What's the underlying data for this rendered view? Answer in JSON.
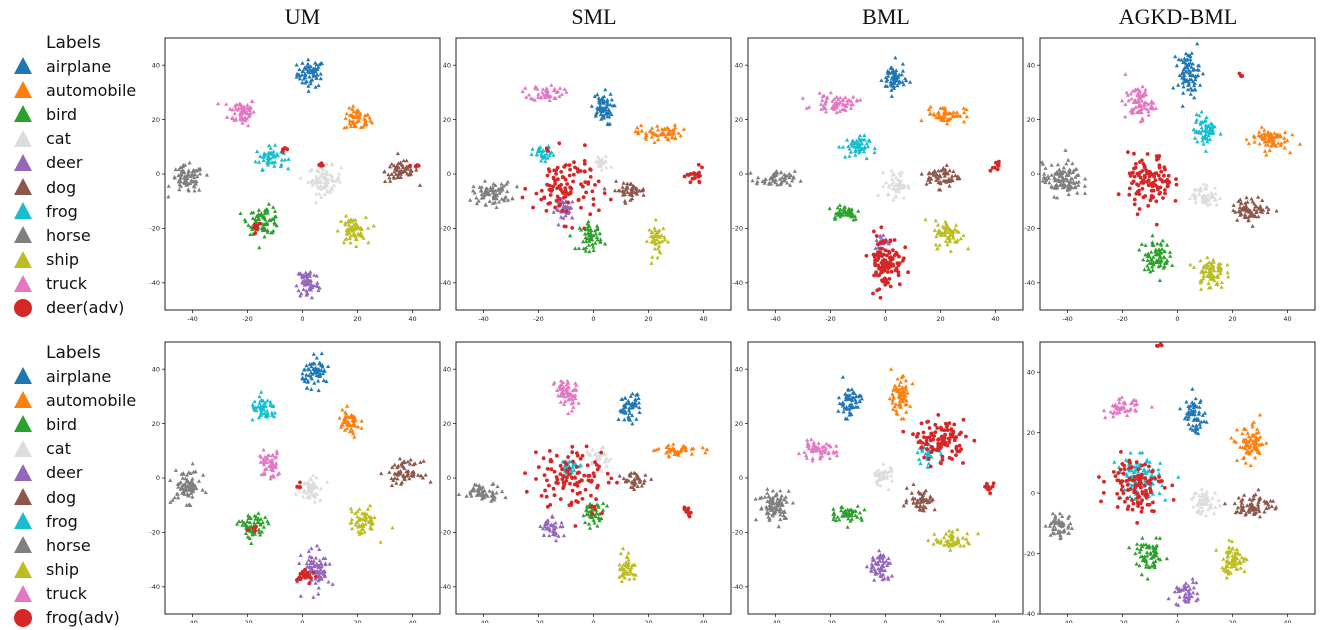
{
  "column_titles": [
    "UM",
    "SML",
    "BML",
    "AGKD-BML"
  ],
  "legends": [
    {
      "title": "Labels",
      "items": [
        {
          "label": "airplane",
          "color": "#1f77b4",
          "marker": "triangle"
        },
        {
          "label": "automobile",
          "color": "#ff7f0e",
          "marker": "triangle"
        },
        {
          "label": "bird",
          "color": "#2ca02c",
          "marker": "triangle"
        },
        {
          "label": "cat",
          "color": "#dddddd",
          "marker": "triangle"
        },
        {
          "label": "deer",
          "color": "#9467bd",
          "marker": "triangle"
        },
        {
          "label": "dog",
          "color": "#8c564b",
          "marker": "triangle"
        },
        {
          "label": "frog",
          "color": "#17becf",
          "marker": "triangle"
        },
        {
          "label": "horse",
          "color": "#7f7f7f",
          "marker": "triangle"
        },
        {
          "label": "ship",
          "color": "#bcbd22",
          "marker": "triangle"
        },
        {
          "label": "truck",
          "color": "#e377c2",
          "marker": "triangle"
        },
        {
          "label": "deer(adv)",
          "color": "#d62728",
          "marker": "circle"
        }
      ]
    },
    {
      "title": "Labels",
      "items": [
        {
          "label": "airplane",
          "color": "#1f77b4",
          "marker": "triangle"
        },
        {
          "label": "automobile",
          "color": "#ff7f0e",
          "marker": "triangle"
        },
        {
          "label": "bird",
          "color": "#2ca02c",
          "marker": "triangle"
        },
        {
          "label": "cat",
          "color": "#dddddd",
          "marker": "triangle"
        },
        {
          "label": "deer",
          "color": "#9467bd",
          "marker": "triangle"
        },
        {
          "label": "dog",
          "color": "#8c564b",
          "marker": "triangle"
        },
        {
          "label": "frog",
          "color": "#17becf",
          "marker": "triangle"
        },
        {
          "label": "horse",
          "color": "#7f7f7f",
          "marker": "triangle"
        },
        {
          "label": "ship",
          "color": "#bcbd22",
          "marker": "triangle"
        },
        {
          "label": "truck",
          "color": "#e377c2",
          "marker": "triangle"
        },
        {
          "label": "frog(adv)",
          "color": "#d62728",
          "marker": "circle"
        }
      ]
    }
  ],
  "chart_data": [
    {
      "type": "scatter",
      "title": "UM",
      "row": 0,
      "xlim": [
        -50,
        50
      ],
      "ylim": [
        -50,
        50
      ],
      "xticks": [
        -40,
        -20,
        0,
        20,
        40
      ],
      "yticks": [
        -40,
        -20,
        0,
        20,
        40
      ],
      "clusters": [
        {
          "class": "airplane",
          "cx": 3,
          "cy": 37,
          "rx": 5,
          "ry": 5
        },
        {
          "class": "automobile",
          "cx": 20,
          "cy": 20,
          "rx": 5,
          "ry": 4
        },
        {
          "class": "truck",
          "cx": -22,
          "cy": 23,
          "rx": 5,
          "ry": 5
        },
        {
          "class": "frog",
          "cx": -12,
          "cy": 6,
          "rx": 5,
          "ry": 4
        },
        {
          "class": "cat",
          "cx": 8,
          "cy": -2,
          "rx": 6,
          "ry": 5
        },
        {
          "class": "dog",
          "cx": 36,
          "cy": 1,
          "rx": 6,
          "ry": 4
        },
        {
          "class": "horse",
          "cx": -42,
          "cy": -2,
          "rx": 6,
          "ry": 5
        },
        {
          "class": "bird",
          "cx": -14,
          "cy": -17,
          "rx": 6,
          "ry": 5
        },
        {
          "class": "ship",
          "cx": 18,
          "cy": -21,
          "rx": 5,
          "ry": 5
        },
        {
          "class": "deer",
          "cx": 2,
          "cy": -40,
          "rx": 4,
          "ry": 6
        },
        {
          "class": "adv",
          "cx": -17,
          "cy": -19,
          "rx": 2,
          "ry": 2
        },
        {
          "class": "adv",
          "cx": -6,
          "cy": 9,
          "rx": 2,
          "ry": 1
        },
        {
          "class": "adv",
          "cx": 7,
          "cy": 3,
          "rx": 2,
          "ry": 1
        },
        {
          "class": "adv",
          "cx": 41,
          "cy": 3,
          "rx": 2,
          "ry": 1
        }
      ]
    },
    {
      "type": "scatter",
      "title": "SML",
      "row": 0,
      "xlim": [
        -50,
        50
      ],
      "ylim": [
        -50,
        50
      ],
      "xticks": [
        -40,
        -20,
        0,
        20,
        40
      ],
      "yticks": [
        -40,
        -20,
        0,
        20,
        40
      ],
      "clusters": [
        {
          "class": "truck",
          "cx": -17,
          "cy": 30,
          "rx": 6,
          "ry": 3
        },
        {
          "class": "airplane",
          "cx": 3,
          "cy": 24,
          "rx": 4,
          "ry": 6
        },
        {
          "class": "automobile",
          "cx": 24,
          "cy": 15,
          "rx": 8,
          "ry": 3
        },
        {
          "class": "frog",
          "cx": -18,
          "cy": 7,
          "rx": 4,
          "ry": 3
        },
        {
          "class": "cat",
          "cx": 3,
          "cy": 4,
          "rx": 3,
          "ry": 3
        },
        {
          "class": "horse",
          "cx": -37,
          "cy": -7,
          "rx": 7,
          "ry": 4
        },
        {
          "class": "dog",
          "cx": 13,
          "cy": -6,
          "rx": 6,
          "ry": 3
        },
        {
          "class": "deer",
          "cx": -10,
          "cy": -13,
          "rx": 4,
          "ry": 4
        },
        {
          "class": "bird",
          "cx": -1,
          "cy": -23,
          "rx": 4,
          "ry": 5
        },
        {
          "class": "ship",
          "cx": 23,
          "cy": -24,
          "rx": 3,
          "ry": 6
        },
        {
          "class": "adv",
          "cx": -10,
          "cy": -5,
          "rx": 12,
          "ry": 12
        },
        {
          "class": "adv",
          "cx": 37,
          "cy": -1,
          "rx": 3,
          "ry": 3
        }
      ]
    },
    {
      "type": "scatter",
      "title": "BML",
      "row": 0,
      "xlim": [
        -50,
        50
      ],
      "ylim": [
        -50,
        50
      ],
      "xticks": [
        -40,
        -20,
        0,
        20,
        40
      ],
      "yticks": [
        -40,
        -20,
        0,
        20,
        40
      ],
      "clusters": [
        {
          "class": "airplane",
          "cx": 3,
          "cy": 35,
          "rx": 4,
          "ry": 6
        },
        {
          "class": "truck",
          "cx": -18,
          "cy": 26,
          "rx": 8,
          "ry": 3
        },
        {
          "class": "automobile",
          "cx": 22,
          "cy": 22,
          "rx": 7,
          "ry": 3
        },
        {
          "class": "frog",
          "cx": -11,
          "cy": 10,
          "rx": 5,
          "ry": 4
        },
        {
          "class": "horse",
          "cx": -40,
          "cy": -2,
          "rx": 7,
          "ry": 3
        },
        {
          "class": "cat",
          "cx": 4,
          "cy": -4,
          "rx": 4,
          "ry": 5
        },
        {
          "class": "dog",
          "cx": 21,
          "cy": -1,
          "rx": 6,
          "ry": 4
        },
        {
          "class": "bird",
          "cx": -15,
          "cy": -14,
          "rx": 6,
          "ry": 3
        },
        {
          "class": "ship",
          "cx": 23,
          "cy": -22,
          "rx": 5,
          "ry": 5
        },
        {
          "class": "deer",
          "cx": -1,
          "cy": -25,
          "rx": 3,
          "ry": 3
        },
        {
          "class": "adv",
          "cx": 0,
          "cy": -32,
          "rx": 6,
          "ry": 10
        },
        {
          "class": "adv",
          "cx": 40,
          "cy": 3,
          "rx": 2,
          "ry": 2
        }
      ]
    },
    {
      "type": "scatter",
      "title": "AGKD-BML",
      "row": 0,
      "xlim": [
        -50,
        50
      ],
      "ylim": [
        -50,
        50
      ],
      "xticks": [
        -40,
        -20,
        0,
        20,
        40
      ],
      "yticks": [
        -40,
        -20,
        0,
        20,
        40
      ],
      "clusters": [
        {
          "class": "airplane",
          "cx": 4,
          "cy": 37,
          "rx": 4,
          "ry": 8
        },
        {
          "class": "truck",
          "cx": -14,
          "cy": 26,
          "rx": 5,
          "ry": 6
        },
        {
          "class": "frog",
          "cx": 10,
          "cy": 16,
          "rx": 4,
          "ry": 6
        },
        {
          "class": "automobile",
          "cx": 33,
          "cy": 13,
          "rx": 7,
          "ry": 4
        },
        {
          "class": "horse",
          "cx": -42,
          "cy": -2,
          "rx": 7,
          "ry": 6
        },
        {
          "class": "cat",
          "cx": 10,
          "cy": -8,
          "rx": 5,
          "ry": 4
        },
        {
          "class": "dog",
          "cx": 27,
          "cy": -13,
          "rx": 7,
          "ry": 4
        },
        {
          "class": "bird",
          "cx": -8,
          "cy": -30,
          "rx": 5,
          "ry": 6
        },
        {
          "class": "ship",
          "cx": 12,
          "cy": -36,
          "rx": 5,
          "ry": 6
        },
        {
          "class": "adv",
          "cx": -10,
          "cy": -3,
          "rx": 8,
          "ry": 10
        },
        {
          "class": "adv",
          "cx": 23,
          "cy": 36,
          "rx": 1,
          "ry": 1
        }
      ]
    },
    {
      "type": "scatter",
      "title": "UM",
      "row": 1,
      "xlim": [
        -50,
        50
      ],
      "ylim": [
        -50,
        50
      ],
      "xticks": [
        -40,
        -20,
        0,
        20,
        40
      ],
      "yticks": [
        -40,
        -20,
        0,
        20,
        40
      ],
      "clusters": [
        {
          "class": "airplane",
          "cx": 5,
          "cy": 39,
          "rx": 5,
          "ry": 5
        },
        {
          "class": "frog",
          "cx": -14,
          "cy": 25,
          "rx": 5,
          "ry": 4
        },
        {
          "class": "automobile",
          "cx": 17,
          "cy": 20,
          "rx": 4,
          "ry": 5
        },
        {
          "class": "truck",
          "cx": -12,
          "cy": 5,
          "rx": 4,
          "ry": 5
        },
        {
          "class": "cat",
          "cx": 3,
          "cy": -3,
          "rx": 4,
          "ry": 5
        },
        {
          "class": "dog",
          "cx": 37,
          "cy": 2,
          "rx": 6,
          "ry": 4
        },
        {
          "class": "horse",
          "cx": -42,
          "cy": -3,
          "rx": 5,
          "ry": 6
        },
        {
          "class": "bird",
          "cx": -18,
          "cy": -18,
          "rx": 5,
          "ry": 5
        },
        {
          "class": "ship",
          "cx": 22,
          "cy": -16,
          "rx": 5,
          "ry": 5
        },
        {
          "class": "deer",
          "cx": 5,
          "cy": -34,
          "rx": 5,
          "ry": 7
        },
        {
          "class": "adv",
          "cx": 1,
          "cy": -36,
          "rx": 3,
          "ry": 3
        },
        {
          "class": "adv",
          "cx": -1,
          "cy": -3,
          "rx": 1,
          "ry": 1
        },
        {
          "class": "adv",
          "cx": -18,
          "cy": -19,
          "rx": 2,
          "ry": 1
        }
      ]
    },
    {
      "type": "scatter",
      "title": "SML",
      "row": 1,
      "xlim": [
        -50,
        50
      ],
      "ylim": [
        -50,
        50
      ],
      "xticks": [
        -40,
        -20,
        0,
        20,
        40
      ],
      "yticks": [
        -40,
        -20,
        0,
        20,
        40
      ],
      "clusters": [
        {
          "class": "truck",
          "cx": -10,
          "cy": 31,
          "rx": 4,
          "ry": 6
        },
        {
          "class": "airplane",
          "cx": 13,
          "cy": 26,
          "rx": 4,
          "ry": 5
        },
        {
          "class": "automobile",
          "cx": 31,
          "cy": 10,
          "rx": 8,
          "ry": 2
        },
        {
          "class": "cat",
          "cx": 2,
          "cy": 7,
          "rx": 4,
          "ry": 4
        },
        {
          "class": "horse",
          "cx": -40,
          "cy": -5,
          "rx": 7,
          "ry": 3
        },
        {
          "class": "dog",
          "cx": 15,
          "cy": -1,
          "rx": 5,
          "ry": 3
        },
        {
          "class": "frog",
          "cx": -8,
          "cy": 4,
          "rx": 4,
          "ry": 3
        },
        {
          "class": "bird",
          "cx": 0,
          "cy": -13,
          "rx": 4,
          "ry": 4
        },
        {
          "class": "deer",
          "cx": -15,
          "cy": -18,
          "rx": 4,
          "ry": 4
        },
        {
          "class": "ship",
          "cx": 12,
          "cy": -33,
          "rx": 3,
          "ry": 6
        },
        {
          "class": "adv",
          "cx": -8,
          "cy": 0,
          "rx": 14,
          "ry": 12
        },
        {
          "class": "adv",
          "cx": 34,
          "cy": -12,
          "rx": 2,
          "ry": 2
        }
      ]
    },
    {
      "type": "scatter",
      "title": "BML",
      "row": 1,
      "xlim": [
        -50,
        50
      ],
      "ylim": [
        -50,
        50
      ],
      "xticks": [
        -40,
        -20,
        0,
        20,
        40
      ],
      "yticks": [
        -40,
        -20,
        0,
        20,
        40
      ],
      "clusters": [
        {
          "class": "airplane",
          "cx": -13,
          "cy": 28,
          "rx": 4,
          "ry": 6
        },
        {
          "class": "automobile",
          "cx": 5,
          "cy": 30,
          "rx": 4,
          "ry": 7
        },
        {
          "class": "truck",
          "cx": -25,
          "cy": 10,
          "rx": 7,
          "ry": 3
        },
        {
          "class": "cat",
          "cx": -1,
          "cy": 1,
          "rx": 4,
          "ry": 4
        },
        {
          "class": "frog",
          "cx": 16,
          "cy": 9,
          "rx": 4,
          "ry": 3
        },
        {
          "class": "horse",
          "cx": -40,
          "cy": -10,
          "rx": 6,
          "ry": 6
        },
        {
          "class": "dog",
          "cx": 13,
          "cy": -8,
          "rx": 5,
          "ry": 4
        },
        {
          "class": "bird",
          "cx": -14,
          "cy": -13,
          "rx": 6,
          "ry": 3
        },
        {
          "class": "ship",
          "cx": 25,
          "cy": -23,
          "rx": 7,
          "ry": 3
        },
        {
          "class": "deer",
          "cx": -2,
          "cy": -33,
          "rx": 4,
          "ry": 6
        },
        {
          "class": "adv",
          "cx": 20,
          "cy": 14,
          "rx": 9,
          "ry": 7
        },
        {
          "class": "adv",
          "cx": 38,
          "cy": -4,
          "rx": 2,
          "ry": 2
        }
      ]
    },
    {
      "type": "scatter",
      "title": "AGKD-BML",
      "row": 1,
      "xlim": [
        -50,
        50
      ],
      "ylim": [
        -40,
        50
      ],
      "xticks": [
        -40,
        -20,
        0,
        20,
        40
      ],
      "yticks": [
        -40,
        -20,
        0,
        20,
        40
      ],
      "clusters": [
        {
          "class": "truck",
          "cx": -20,
          "cy": 28,
          "rx": 6,
          "ry": 3
        },
        {
          "class": "airplane",
          "cx": 6,
          "cy": 26,
          "rx": 4,
          "ry": 6
        },
        {
          "class": "automobile",
          "cx": 27,
          "cy": 16,
          "rx": 5,
          "ry": 6
        },
        {
          "class": "frog",
          "cx": -14,
          "cy": 5,
          "rx": 8,
          "ry": 7
        },
        {
          "class": "cat",
          "cx": 10,
          "cy": -3,
          "rx": 5,
          "ry": 4
        },
        {
          "class": "dog",
          "cx": 28,
          "cy": -4,
          "rx": 7,
          "ry": 4
        },
        {
          "class": "horse",
          "cx": -43,
          "cy": -11,
          "rx": 5,
          "ry": 4
        },
        {
          "class": "bird",
          "cx": -10,
          "cy": -21,
          "rx": 5,
          "ry": 5
        },
        {
          "class": "ship",
          "cx": 20,
          "cy": -22,
          "rx": 5,
          "ry": 5
        },
        {
          "class": "deer",
          "cx": 3,
          "cy": -33,
          "rx": 4,
          "ry": 4
        },
        {
          "class": "adv",
          "cx": -15,
          "cy": 3,
          "rx": 10,
          "ry": 9
        },
        {
          "class": "adv",
          "cx": -7,
          "cy": 49,
          "rx": 1,
          "ry": 1
        }
      ]
    }
  ]
}
